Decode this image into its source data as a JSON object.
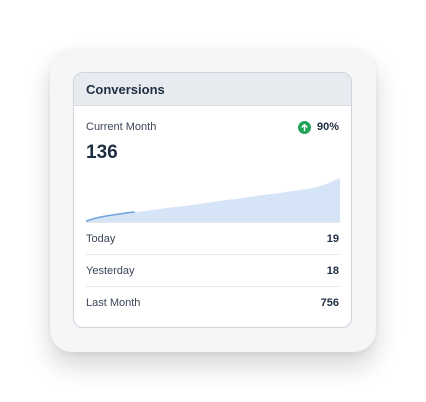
{
  "widget": {
    "title": "Conversions",
    "period_label": "Current Month",
    "change_percent": "90%",
    "change_direction": "up",
    "value": "136",
    "icon": "arrow-up-circle-icon",
    "colors": {
      "accent_up": "#23a35b",
      "chart_fill": "#d5e4f6",
      "chart_line": "#6fa1dc",
      "header_bg": "#e7ebf0"
    }
  },
  "stats": [
    {
      "label": "Today",
      "value": "19"
    },
    {
      "label": "Yesterday",
      "value": "18"
    },
    {
      "label": "Last Month",
      "value": "756"
    }
  ]
}
